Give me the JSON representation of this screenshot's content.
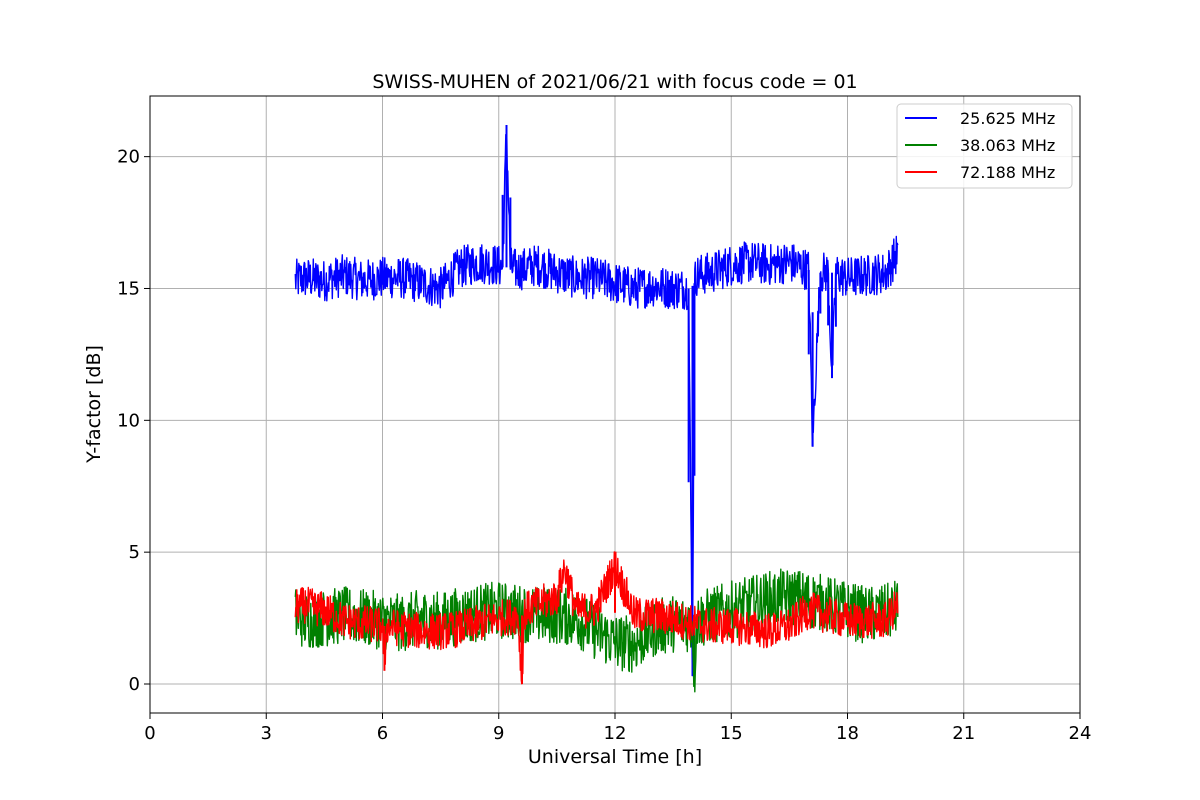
{
  "chart_data": {
    "type": "line",
    "title": "SWISS-MUHEN of 2021/06/21 with focus code = 01",
    "xlabel": "Universal Time [h]",
    "ylabel": "Y-factor [dB]",
    "xlim": [
      0,
      24
    ],
    "ylim": [
      -1.1,
      22.3
    ],
    "xticks": [
      0,
      3,
      6,
      9,
      12,
      15,
      18,
      21,
      24
    ],
    "yticks": [
      0,
      5,
      10,
      15,
      20
    ],
    "grid": true,
    "legend_position": "top-right",
    "series": [
      {
        "name": "25.625 MHz",
        "color": "#0000ff",
        "x": [
          3.75,
          4.0,
          4.5,
          5.0,
          5.5,
          6.0,
          6.5,
          7.0,
          7.5,
          8.0,
          8.5,
          8.9,
          9.1,
          9.2,
          9.3,
          9.5,
          10.0,
          10.5,
          11.0,
          11.5,
          12.0,
          12.5,
          13.0,
          13.5,
          13.9,
          14.0,
          14.05,
          14.1,
          14.5,
          15.0,
          15.5,
          16.0,
          16.5,
          17.0,
          17.1,
          17.2,
          17.3,
          17.5,
          17.6,
          17.7,
          17.8,
          18.0,
          18.5,
          19.0,
          19.3
        ],
        "y": [
          15.3,
          15.4,
          15.3,
          15.5,
          15.3,
          15.4,
          15.4,
          15.2,
          15.0,
          15.8,
          16.0,
          15.9,
          15.8,
          21.2,
          15.8,
          15.7,
          15.9,
          15.6,
          15.4,
          15.4,
          15.2,
          15.0,
          15.1,
          15.0,
          15.0,
          0.3,
          15.2,
          15.5,
          15.6,
          15.9,
          16.0,
          15.9,
          16.0,
          15.7,
          9.0,
          12.5,
          15.6,
          15.6,
          11.6,
          15.6,
          15.5,
          15.4,
          15.5,
          15.6,
          16.4
        ],
        "amplitude": 0.8
      },
      {
        "name": "38.063 MHz",
        "color": "#008000",
        "x": [
          3.75,
          4.0,
          4.5,
          5.0,
          5.5,
          6.0,
          6.5,
          7.0,
          7.5,
          8.0,
          8.5,
          9.0,
          9.5,
          10.0,
          10.5,
          11.0,
          11.5,
          12.0,
          12.5,
          13.0,
          13.5,
          14.0,
          14.05,
          14.1,
          14.5,
          15.0,
          15.5,
          16.0,
          16.5,
          17.0,
          17.5,
          18.0,
          18.5,
          19.0,
          19.3
        ],
        "y": [
          2.6,
          2.4,
          2.5,
          2.6,
          2.5,
          2.4,
          2.3,
          2.5,
          2.4,
          2.6,
          2.7,
          2.8,
          2.7,
          2.6,
          2.6,
          2.5,
          2.0,
          1.6,
          1.5,
          2.1,
          2.3,
          2.3,
          0.1,
          2.4,
          2.6,
          2.8,
          3.0,
          3.2,
          3.3,
          3.2,
          3.0,
          2.8,
          2.6,
          2.7,
          2.9
        ],
        "amplitude": 1.1
      },
      {
        "name": "72.188 MHz",
        "color": "#ff0000",
        "x": [
          3.75,
          4.0,
          4.5,
          5.0,
          5.5,
          6.0,
          6.05,
          6.1,
          6.5,
          7.0,
          7.5,
          8.0,
          8.5,
          9.0,
          9.5,
          9.6,
          9.65,
          9.7,
          10.0,
          10.5,
          10.7,
          11.0,
          11.5,
          12.0,
          12.5,
          13.0,
          13.5,
          14.0,
          14.5,
          15.0,
          15.5,
          16.0,
          16.5,
          17.0,
          17.5,
          18.0,
          18.5,
          19.0,
          19.3
        ],
        "y": [
          2.9,
          3.0,
          2.8,
          2.4,
          2.3,
          2.2,
          0.5,
          2.2,
          2.1,
          2.0,
          2.0,
          2.1,
          2.3,
          2.5,
          2.6,
          0.0,
          2.6,
          2.8,
          3.0,
          3.3,
          4.4,
          2.8,
          2.8,
          4.5,
          2.6,
          2.6,
          2.5,
          2.3,
          2.2,
          2.2,
          2.1,
          2.0,
          2.2,
          2.8,
          2.6,
          2.4,
          2.4,
          2.4,
          3.0
        ],
        "amplitude": 0.7
      }
    ]
  }
}
